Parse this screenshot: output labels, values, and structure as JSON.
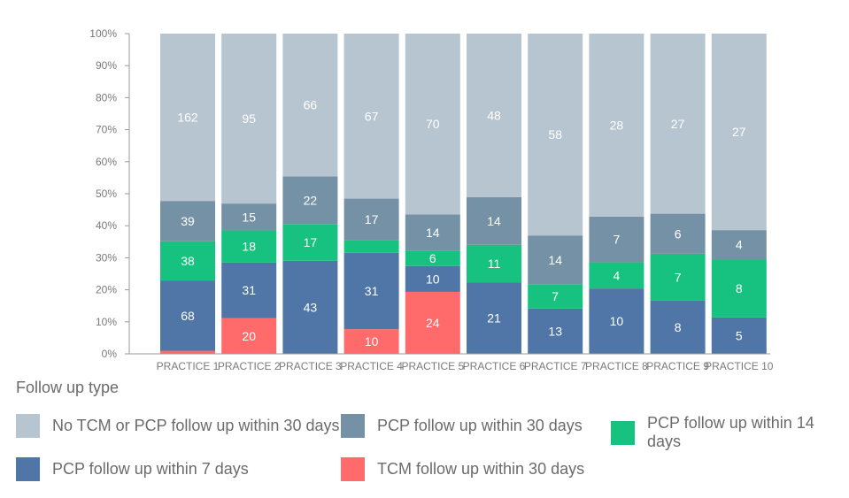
{
  "chart_data": {
    "type": "bar",
    "stacked": "percent",
    "categories": [
      "PRACTICE 1",
      "PRACTICE 2",
      "PRACTICE 3",
      "PRACTICE 4",
      "PRACTICE 5",
      "PRACTICE 6",
      "PRACTICE 7",
      "PRACTICE 8",
      "PRACTICE 9",
      "PRACTICE 10"
    ],
    "yticks": [
      "0%",
      "10%",
      "20%",
      "30%",
      "40%",
      "50%",
      "60%",
      "70%",
      "80%",
      "90%",
      "100%"
    ],
    "ylim": [
      0,
      100
    ],
    "legend_title": "Follow up type",
    "series": [
      {
        "name": "TCM follow up within 30 days",
        "color": "#ff6b6b",
        "values": [
          3,
          20,
          0,
          10,
          24,
          0,
          0,
          0,
          0,
          0
        ],
        "labels": [
          "",
          "20",
          "",
          "10",
          "24",
          "",
          "",
          "",
          "",
          ""
        ]
      },
      {
        "name": "PCP follow up within 7 days",
        "color": "#4f76a6",
        "values": [
          68,
          31,
          43,
          31,
          10,
          21,
          13,
          10,
          8,
          5
        ],
        "labels": [
          "68",
          "31",
          "43",
          "31",
          "10",
          "21",
          "13",
          "10",
          "8",
          "5"
        ]
      },
      {
        "name": "PCP follow up within 14 days",
        "color": "#17c17f",
        "values": [
          38,
          18,
          17,
          5,
          6,
          11,
          7,
          4,
          7,
          8
        ],
        "labels": [
          "38",
          "18",
          "17",
          "",
          "6",
          "11",
          "7",
          "4",
          "7",
          "8"
        ]
      },
      {
        "name": "PCP follow up within 30 days",
        "color": "#7591a5",
        "values": [
          39,
          15,
          22,
          17,
          14,
          14,
          14,
          7,
          6,
          4
        ],
        "labels": [
          "39",
          "15",
          "22",
          "17",
          "14",
          "14",
          "14",
          "7",
          "6",
          "4"
        ]
      },
      {
        "name": "No TCM or PCP follow up within 30 days",
        "color": "#b7c5d0",
        "values": [
          162,
          95,
          66,
          67,
          70,
          48,
          58,
          28,
          27,
          27
        ],
        "labels": [
          "162",
          "95",
          "66",
          "67",
          "70",
          "48",
          "58",
          "28",
          "27",
          "27"
        ]
      }
    ],
    "legend_order": [
      4,
      3,
      2,
      1,
      0
    ],
    "grid": false,
    "legend_position": "bottom"
  }
}
